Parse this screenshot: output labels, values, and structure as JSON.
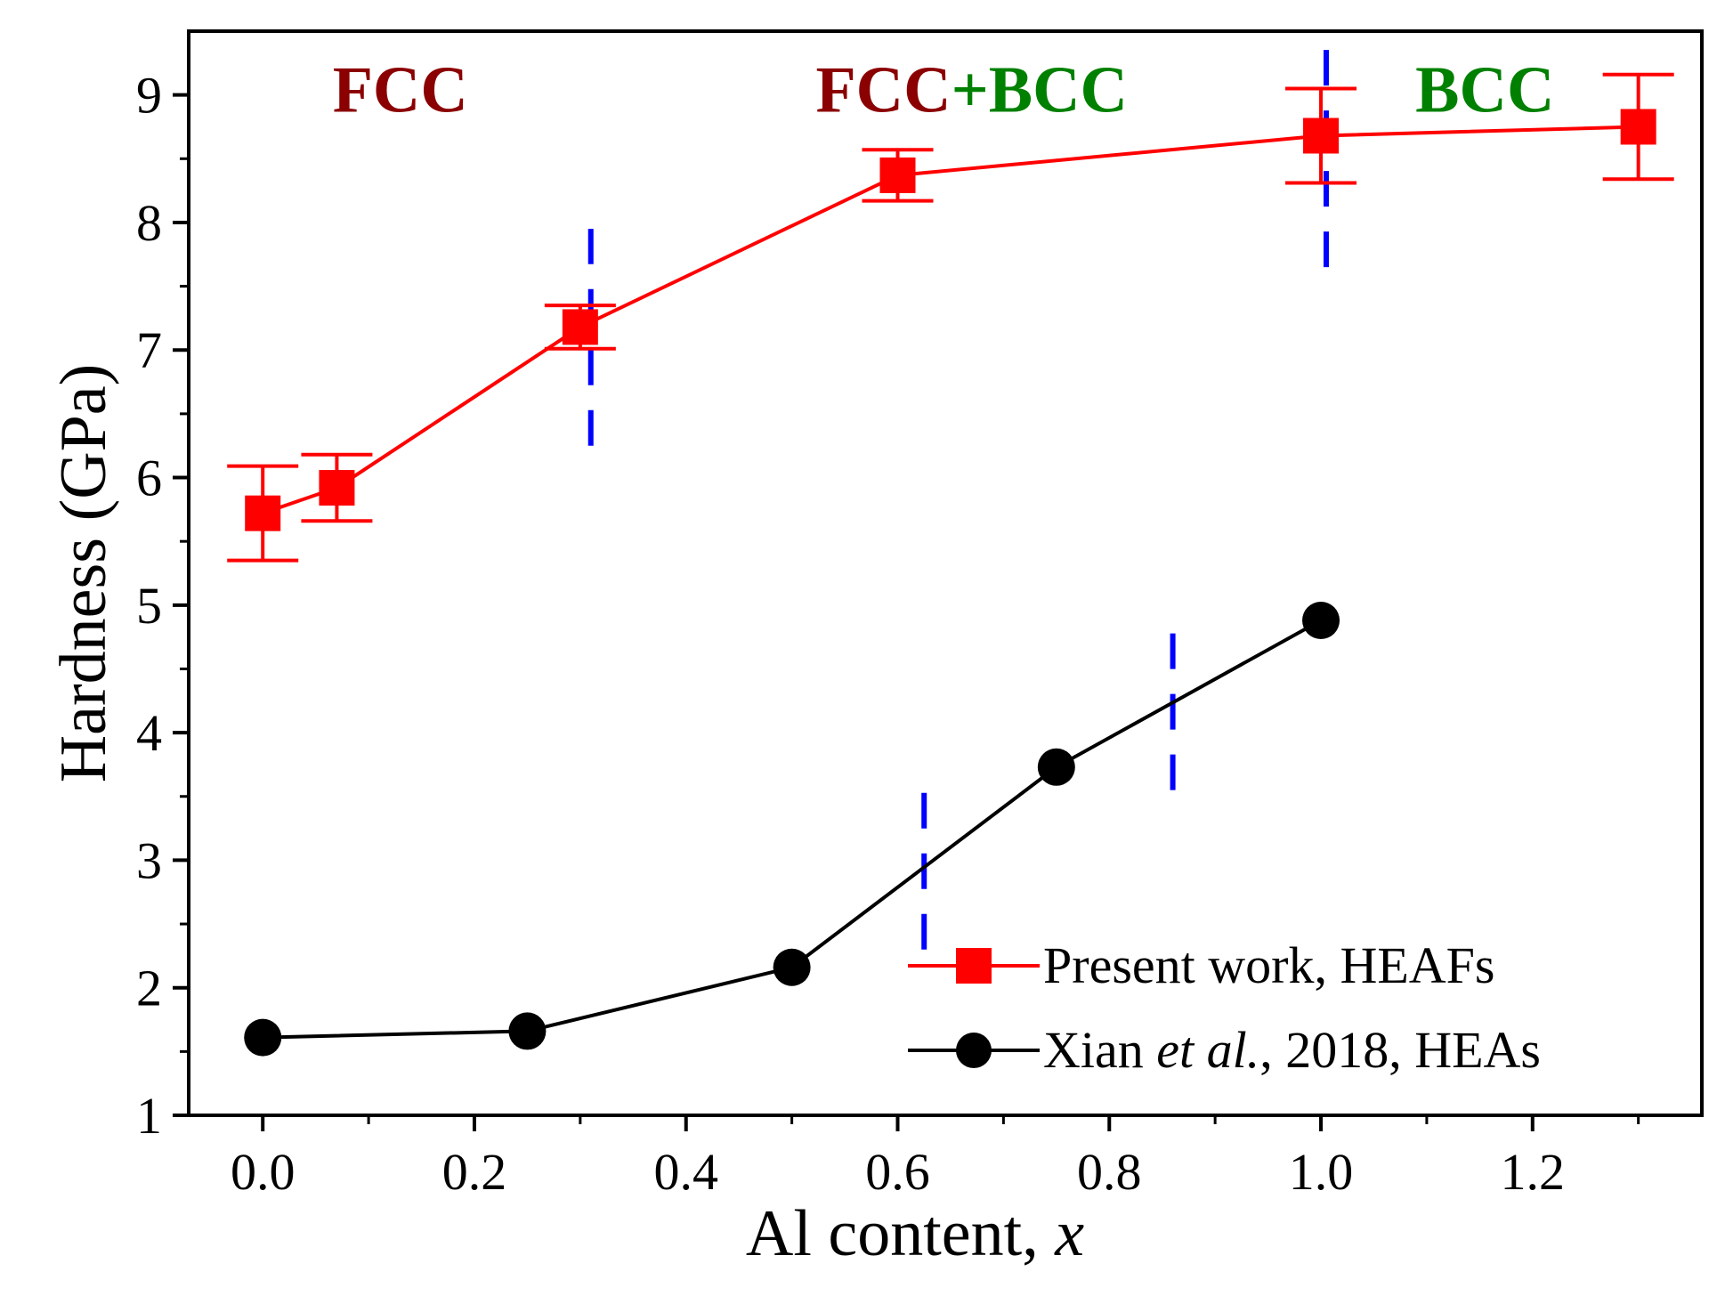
{
  "chart_data": {
    "type": "line",
    "xlabel_prefix": "Al content, ",
    "xlabel_var": "x",
    "ylabel": "Hardness (GPa)",
    "xlim": [
      -0.07,
      1.36
    ],
    "ylim": [
      1,
      9.5
    ],
    "x_ticks": [
      0.0,
      0.2,
      0.4,
      0.6,
      0.8,
      1.0,
      1.2
    ],
    "x_tick_labels": [
      "0.0",
      "0.2",
      "0.4",
      "0.6",
      "0.8",
      "1.0",
      "1.2"
    ],
    "y_ticks": [
      1,
      2,
      3,
      4,
      5,
      6,
      7,
      8,
      9
    ],
    "y_tick_labels": [
      "1",
      "2",
      "3",
      "4",
      "5",
      "6",
      "7",
      "8",
      "9"
    ],
    "series": [
      {
        "name": "Present work, HEAFs",
        "color": "#ff0000",
        "marker": "square",
        "x": [
          0.0,
          0.07,
          0.3,
          0.6,
          1.0,
          1.3
        ],
        "y": [
          5.72,
          5.92,
          7.18,
          8.37,
          8.68,
          8.75
        ],
        "err": [
          0.37,
          0.26,
          0.17,
          0.2,
          0.37,
          0.41
        ]
      },
      {
        "name": "Xian et al., 2018, HEAs",
        "legend_parts": [
          "Xian ",
          "et al.",
          ", 2018, HEAs"
        ],
        "color": "#000000",
        "marker": "circle",
        "x": [
          0.0,
          0.25,
          0.5,
          0.75,
          1.0
        ],
        "y": [
          1.61,
          1.66,
          2.16,
          3.73,
          4.88
        ]
      }
    ],
    "phase_boundaries": [
      {
        "x": 0.31,
        "y_range": [
          6.25,
          7.95
        ],
        "color": "#0000ff"
      },
      {
        "x": 1.005,
        "y_range": [
          7.65,
          9.5
        ],
        "color": "#0000ff"
      },
      {
        "x": 0.625,
        "y_range": [
          2.3,
          3.65
        ],
        "color": "#0000ff"
      },
      {
        "x": 0.86,
        "y_range": [
          3.55,
          4.85
        ],
        "color": "#0000ff"
      }
    ],
    "region_labels": {
      "fcc": {
        "text": "FCC",
        "x": 0.13,
        "y": 9.05,
        "color": "#8b0000"
      },
      "mixed_fcc": {
        "text": "FCC",
        "color": "#8b0000"
      },
      "mixed_plus_bcc": {
        "text": "+BCC",
        "color": "#008000"
      },
      "mixed_anchor": {
        "x": 0.67,
        "y": 9.05
      },
      "bcc": {
        "text": "BCC",
        "x": 1.155,
        "y": 9.05,
        "color": "#008000"
      }
    }
  }
}
